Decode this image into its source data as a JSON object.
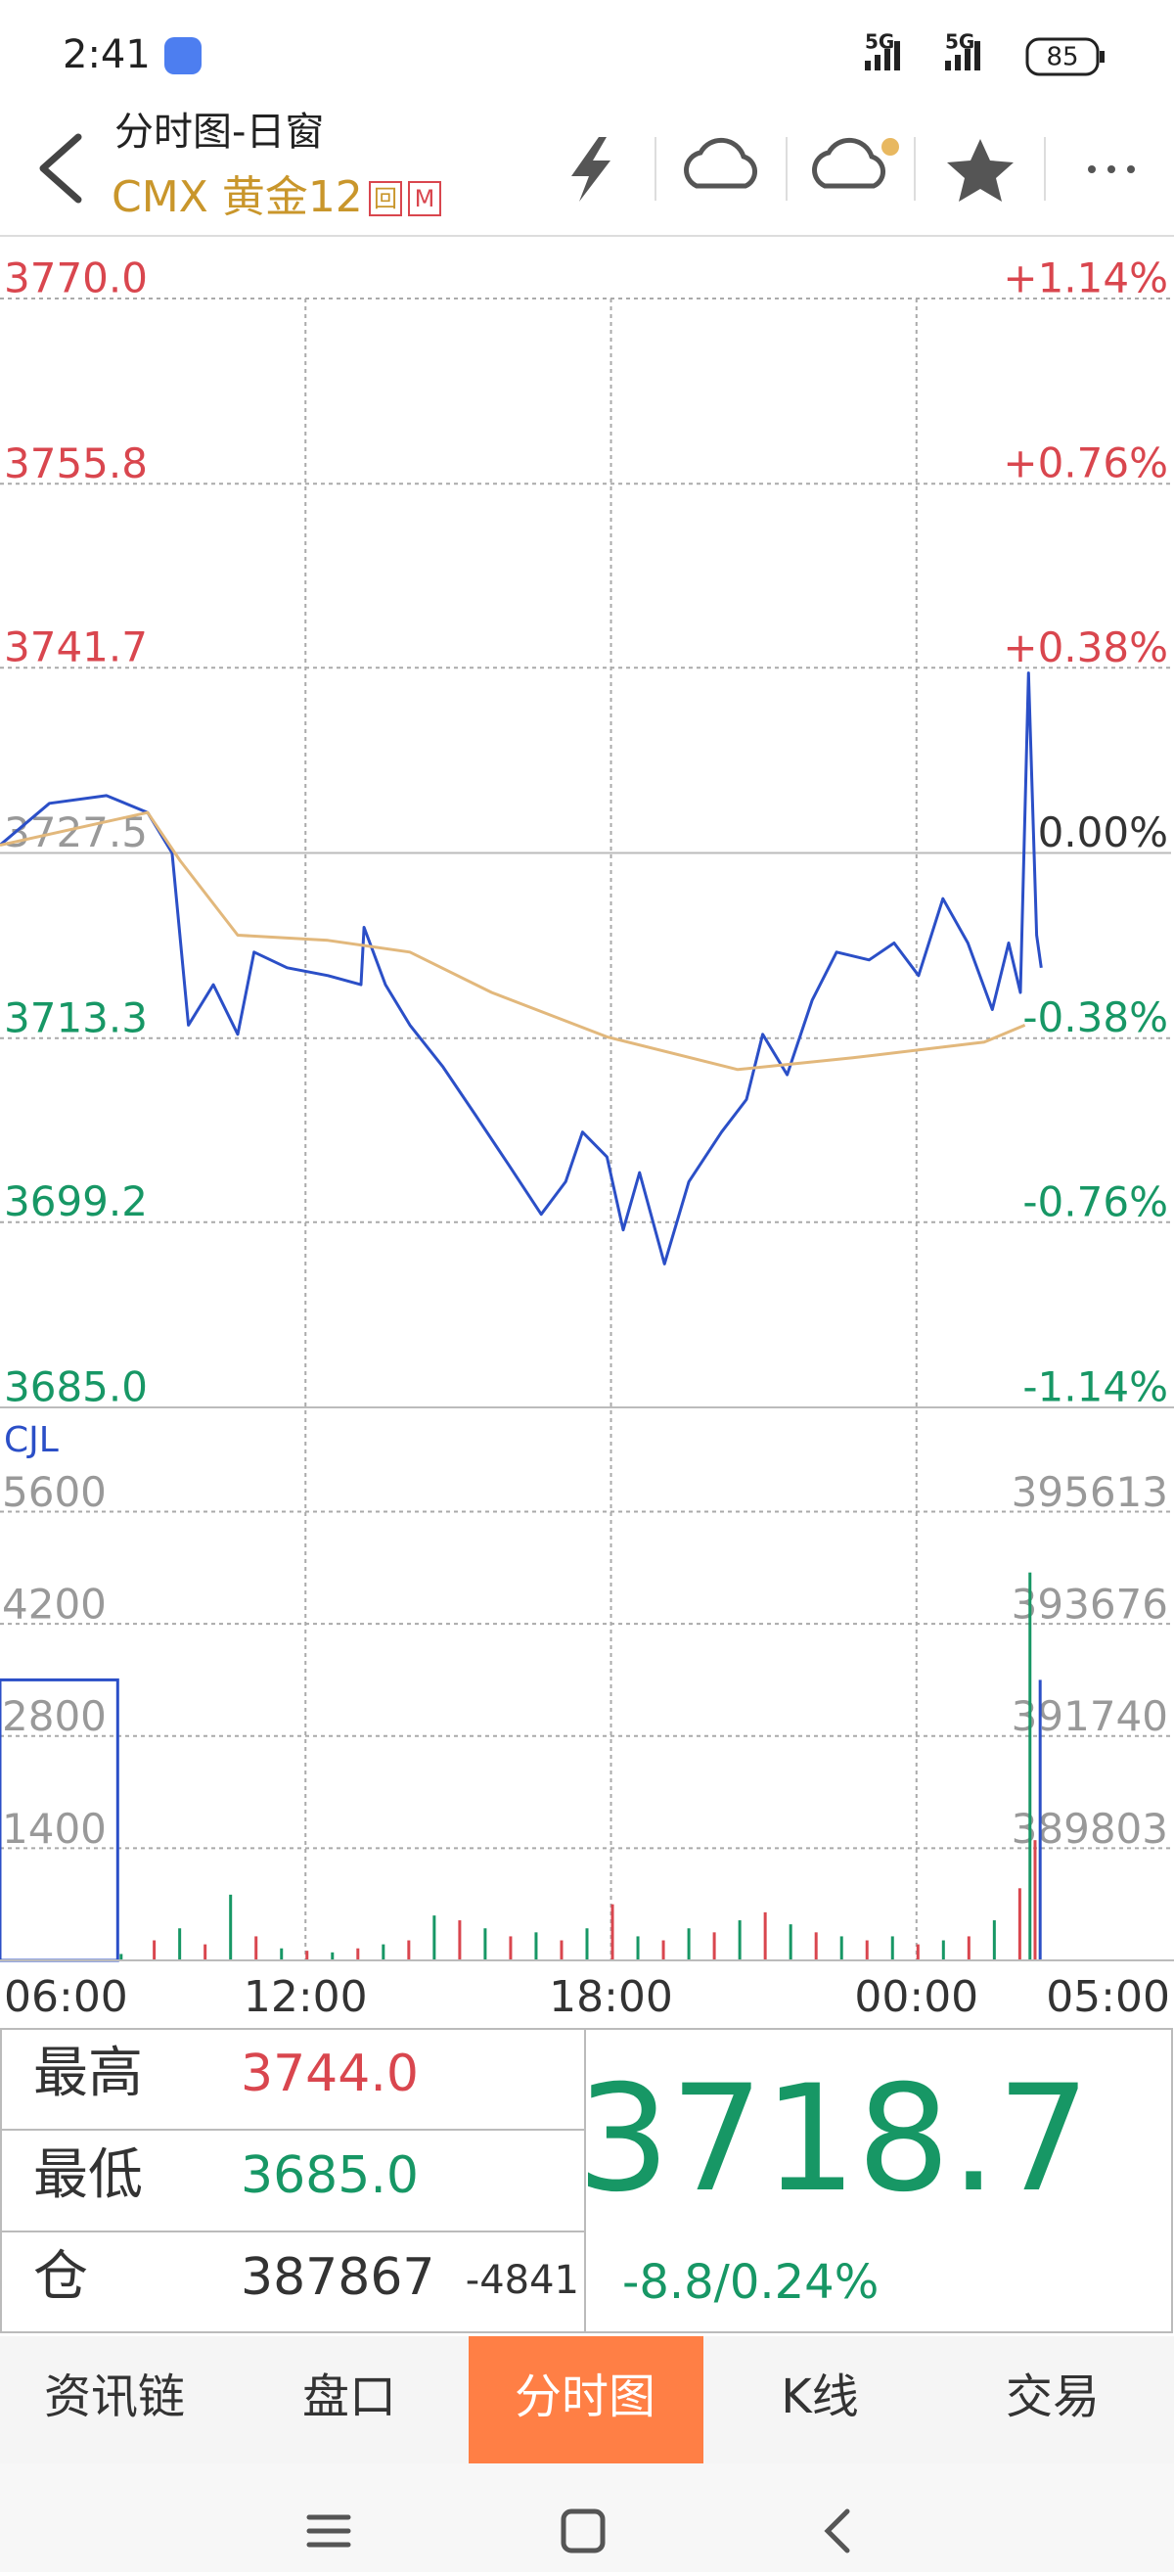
{
  "status_bar": {
    "time": "2:41",
    "signal_1": "5G",
    "signal_2": "5G",
    "battery": "85"
  },
  "header": {
    "title": "分时图-日窗",
    "subtitle": "CMX 黄金12",
    "badge_1": "回",
    "badge_2": "M"
  },
  "chart_data": [
    {
      "type": "line",
      "xlim": [
        0,
        23
      ],
      "xticks": [
        {
          "value": 0,
          "label": "06:00"
        },
        {
          "value": 6,
          "label": "12:00"
        },
        {
          "value": 12,
          "label": "18:00"
        },
        {
          "value": 18,
          "label": "00:00"
        },
        {
          "value": 23,
          "label": "05:00"
        }
      ],
      "ylim": [
        3685,
        3770
      ],
      "yticks": [
        {
          "value": 3770,
          "label": "3770.0"
        },
        {
          "value": 3755.8,
          "label": "3755.8"
        },
        {
          "value": 3741.7,
          "label": "3741.7"
        },
        {
          "value": 3727.5,
          "label": "3727.5"
        },
        {
          "value": 3713.3,
          "label": "3713.3"
        },
        {
          "value": 3699.2,
          "label": "3699.2"
        },
        {
          "value": 3685,
          "label": "3685.0"
        }
      ],
      "y2lim": [
        -1.14,
        1.14
      ],
      "y2ticks": [
        {
          "value": 1.14,
          "label": "+1.14%"
        },
        {
          "value": 0.76,
          "label": "+0.76%"
        },
        {
          "value": 0.38,
          "label": "+0.38%"
        },
        {
          "value": 0,
          "label": "0.00%"
        },
        {
          "value": -0.38,
          "label": "-0.38%"
        },
        {
          "value": -0.76,
          "label": "-0.76%"
        },
        {
          "value": -1.14,
          "label": "-1.14%"
        }
      ],
      "grid": true,
      "series": [
        {
          "color": "#2b4fc7",
          "x": [
            0,
            0.97,
            2.09,
            2.9,
            3.38,
            3.7,
            4.19,
            4.67,
            4.99,
            5.64,
            6.44,
            7.09,
            7.15,
            7.57,
            8.05,
            8.7,
            9.34,
            9.99,
            10.63,
            11.11,
            11.44,
            11.92,
            12.24,
            12.56,
            13.05,
            13.53,
            14.17,
            14.66,
            14.98,
            15.46,
            15.95,
            16.43,
            17.07,
            17.56,
            18.04,
            18.52,
            19.01,
            19.49,
            19.81,
            20.04,
            20.2,
            20.36,
            20.45
          ],
          "values": [
            3728.1,
            3731.3,
            3731.9,
            3730.6,
            3727.5,
            3714.3,
            3717.4,
            3713.6,
            3719.9,
            3718.7,
            3718.1,
            3717.4,
            3721.8,
            3717.4,
            3714.3,
            3711.1,
            3707.4,
            3703.6,
            3699.8,
            3702.3,
            3706.1,
            3704.2,
            3698.6,
            3703.0,
            3696.0,
            3702.3,
            3706.1,
            3708.6,
            3713.6,
            3710.5,
            3716.2,
            3719.9,
            3719.3,
            3720.6,
            3718.1,
            3724.0,
            3720.6,
            3715.5,
            3720.6,
            3716.8,
            3741.3,
            3721.2,
            3718.7
          ]
        },
        {
          "color": "#e2b87c",
          "x": [
            0,
            2.9,
            3.54,
            4.67,
            6.44,
            8.05,
            9.66,
            11.92,
            14.49,
            16.75,
            19.33,
            20.13
          ],
          "values": [
            3728.1,
            3730.6,
            3726.9,
            3721.2,
            3720.8,
            3719.9,
            3716.8,
            3713.4,
            3710.9,
            3711.8,
            3713.0,
            3714.3
          ]
        }
      ]
    },
    {
      "type": "bar",
      "title": "CJL",
      "xlim": [
        0,
        23
      ],
      "ylim": [
        0,
        6900
      ],
      "yticks": [
        5600,
        4200,
        2800,
        1400
      ],
      "y2lim": [
        387866,
        397411
      ],
      "y2ticks": [
        395613,
        393676,
        391740,
        389803
      ],
      "x": [
        0,
        2.35,
        3.0,
        3.5,
        4.0,
        4.5,
        5.0,
        5.5,
        6.0,
        6.5,
        7.0,
        7.5,
        8.0,
        8.5,
        9.0,
        9.5,
        10.0,
        10.5,
        11.0,
        11.5,
        12.0,
        12.5,
        13.0,
        13.5,
        14.0,
        14.5,
        15.0,
        15.5,
        16.0,
        16.5,
        17.0,
        17.5,
        18.0,
        18.5,
        19.0,
        19.5,
        20.0,
        20.2,
        20.3,
        20.4
      ],
      "values": [
        3500,
        80,
        250,
        400,
        200,
        820,
        300,
        150,
        120,
        100,
        150,
        200,
        250,
        560,
        500,
        400,
        300,
        350,
        250,
        400,
        700,
        300,
        250,
        400,
        350,
        500,
        600,
        450,
        350,
        300,
        250,
        300,
        200,
        250,
        300,
        500,
        900,
        4840,
        1500,
        3500
      ],
      "colors": [
        "#2b4fc7",
        "#179765",
        "#d9464e",
        "#179765",
        "#d9464e",
        "#179765",
        "#d9464e",
        "#179765",
        "#d9464e",
        "#179765",
        "#d9464e",
        "#179765",
        "#d9464e",
        "#179765",
        "#d9464e",
        "#179765",
        "#d9464e",
        "#179765",
        "#d9464e",
        "#179765",
        "#d9464e",
        "#179765",
        "#d9464e",
        "#179765",
        "#d9464e",
        "#179765",
        "#d9464e",
        "#179765",
        "#d9464e",
        "#179765",
        "#d9464e",
        "#179765",
        "#d9464e",
        "#179765",
        "#d9464e",
        "#179765",
        "#d9464e",
        "#179765",
        "#d9464e",
        "#2b4fc7"
      ]
    }
  ],
  "quote": {
    "high_label": "最高",
    "high": "3744.0",
    "low_label": "最低",
    "low": "3685.0",
    "oi_label": "仓",
    "oi": "387867",
    "oi_change": "-4841",
    "last": "3718.7",
    "change": "-8.8/0.24%"
  },
  "tabs": [
    "资讯链",
    "盘口",
    "分时图",
    "K线",
    "交易"
  ]
}
